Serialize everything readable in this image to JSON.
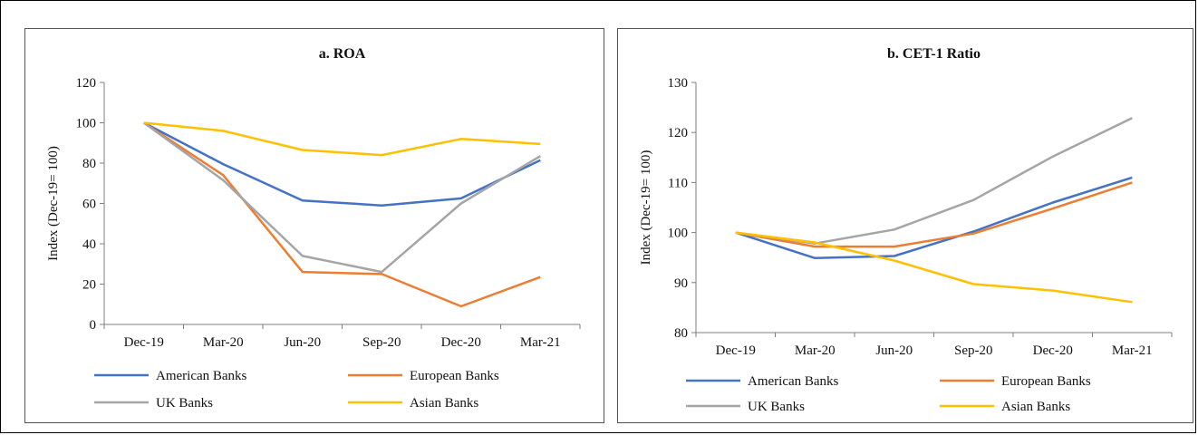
{
  "chart_data": [
    {
      "id": "roa",
      "type": "line",
      "title": "a. ROA",
      "xlabel": "",
      "ylabel": "Index (Dec-19= 100)",
      "categories": [
        "Dec-19",
        "Mar-20",
        "Jun-20",
        "Sep-20",
        "Dec-20",
        "Mar-21"
      ],
      "ylim": [
        0,
        120
      ],
      "yticks": [
        0,
        20,
        40,
        60,
        80,
        100,
        120
      ],
      "grid": false,
      "legend_position": "bottom",
      "series": [
        {
          "name": "American Banks",
          "color": "#4472C4",
          "values": [
            100,
            79.5,
            61.5,
            59,
            62.5,
            81.5
          ]
        },
        {
          "name": "European Banks",
          "color": "#ED7D31",
          "values": [
            100,
            74,
            26,
            25,
            9,
            23.5
          ]
        },
        {
          "name": "UK Banks",
          "color": "#A5A5A5",
          "values": [
            100,
            71.5,
            34,
            26,
            60,
            83.5
          ]
        },
        {
          "name": "Asian Banks",
          "color": "#FFC000",
          "values": [
            100,
            96,
            86.5,
            84,
            92,
            89.5
          ]
        }
      ]
    },
    {
      "id": "cet1",
      "type": "line",
      "title": "b. CET-1 Ratio",
      "xlabel": "",
      "ylabel": "Index (Dec-19= 100)",
      "categories": [
        "Dec-19",
        "Mar-20",
        "Jun-20",
        "Sep-20",
        "Dec-20",
        "Mar-21"
      ],
      "ylim": [
        80,
        130
      ],
      "yticks": [
        80,
        90,
        100,
        110,
        120,
        130
      ],
      "grid": false,
      "legend_position": "bottom",
      "series": [
        {
          "name": "American Banks",
          "color": "#4472C4",
          "values": [
            100,
            94.9,
            95.3,
            100.2,
            106,
            111
          ]
        },
        {
          "name": "European Banks",
          "color": "#ED7D31",
          "values": [
            100,
            97.2,
            97.2,
            99.8,
            104.8,
            110
          ]
        },
        {
          "name": "UK Banks",
          "color": "#A5A5A5",
          "values": [
            100,
            97.8,
            100.6,
            106.5,
            115.2,
            122.9
          ]
        },
        {
          "name": "Asian Banks",
          "color": "#FFC000",
          "values": [
            100,
            98,
            94.4,
            89.7,
            88.4,
            86.1
          ]
        }
      ]
    }
  ]
}
